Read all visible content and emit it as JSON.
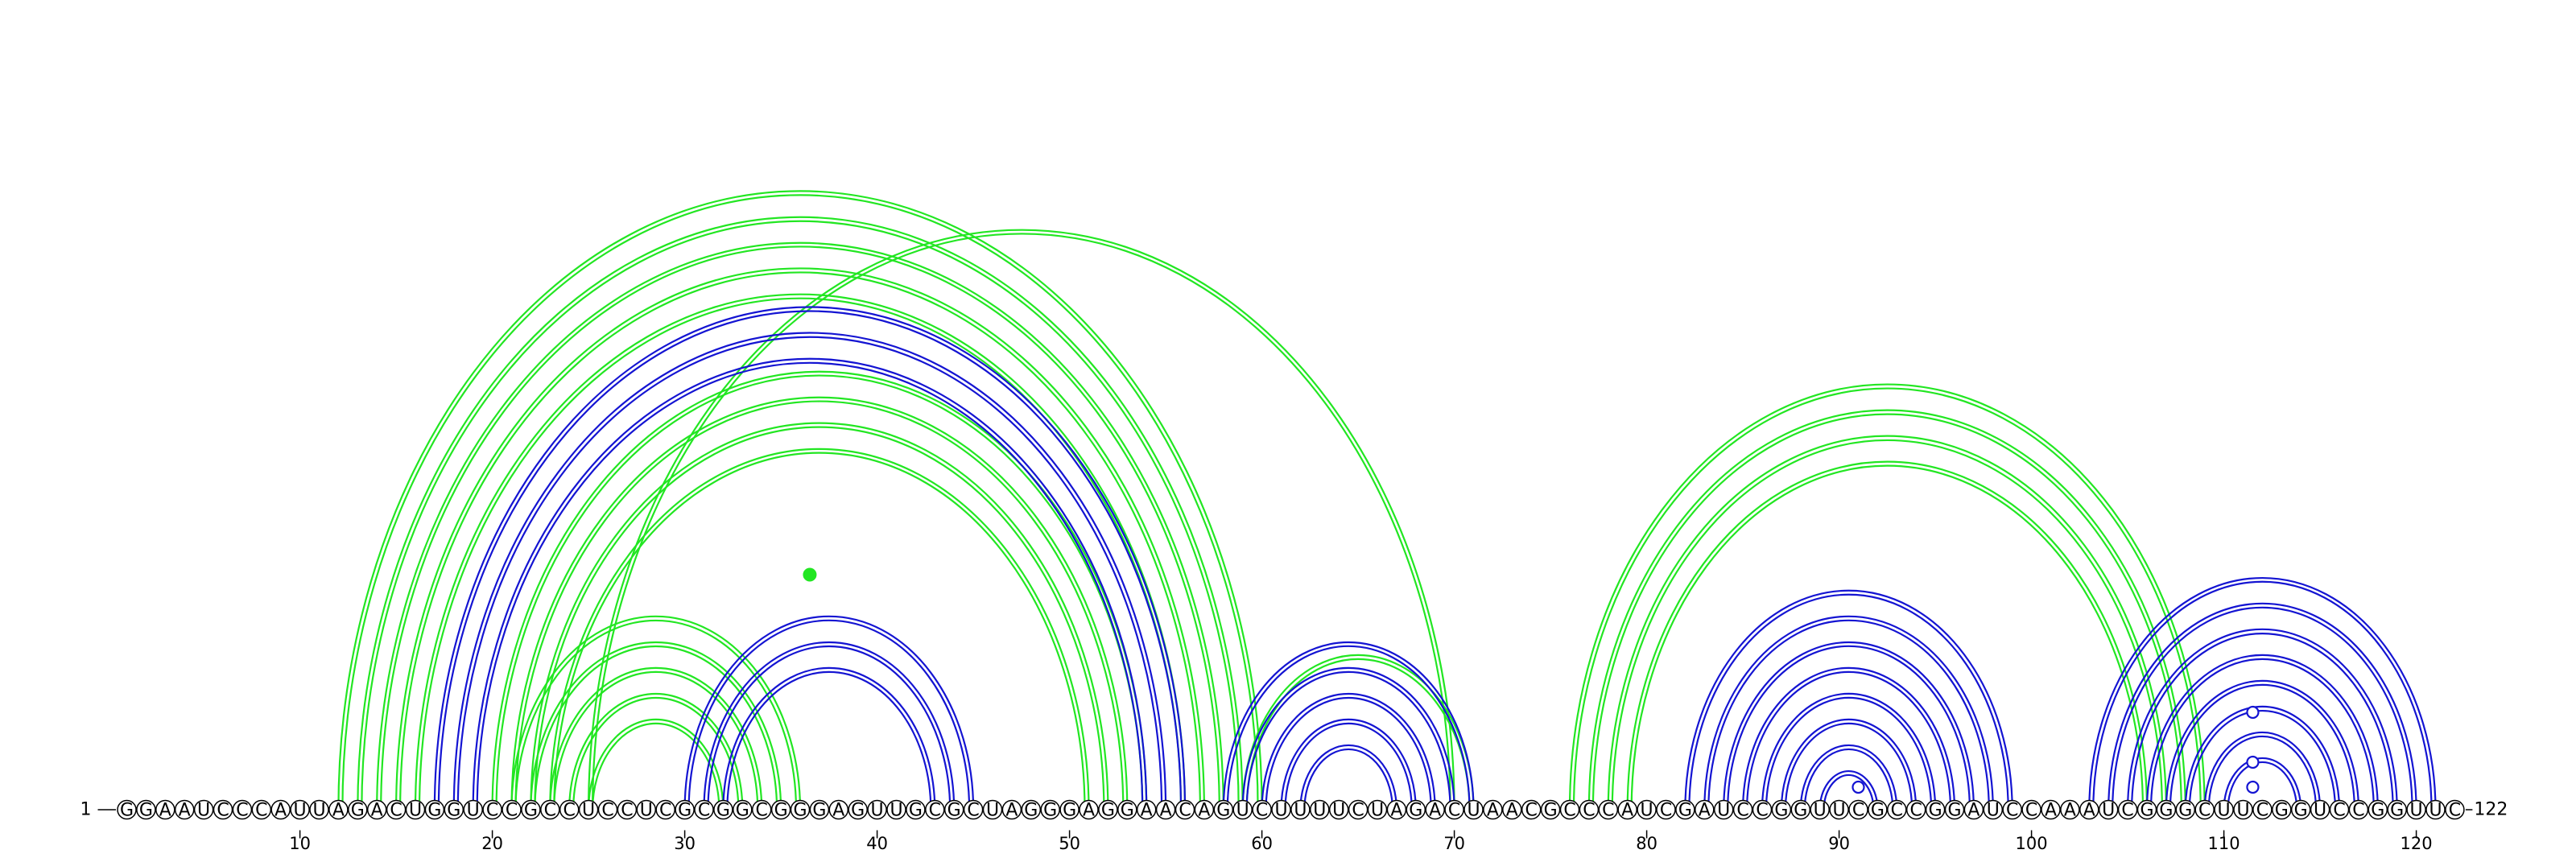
{
  "sequence": "GGAAUCCCAUUAGACUGGUCCGCCUCCUCGCGGCGGGAGUUGCGCUAGGGAGGAACAGUCUUUUCUAGACUAACGCCCAUCGAUCCGGUUCGCCGGAUCCAAAUCGGGCUUCGGUCCGGUUC",
  "length": 122,
  "start_label": "1",
  "end_label": "122",
  "ticks": [
    "10",
    "20",
    "30",
    "40",
    "50",
    "60",
    "70",
    "80",
    "90",
    "100",
    "110",
    "120"
  ],
  "colors": {
    "green": "#22e622",
    "blue": "#1414d2"
  },
  "structures": [
    {
      "color": "green",
      "pairs": [
        [
          12,
          60
        ],
        [
          13,
          59
        ],
        [
          14,
          58
        ],
        [
          15,
          57
        ],
        [
          16,
          56
        ],
        [
          20,
          54
        ],
        [
          21,
          53
        ],
        [
          22,
          52
        ],
        [
          23,
          51
        ],
        [
          25,
          70
        ],
        [
          21,
          36
        ],
        [
          22,
          35
        ],
        [
          23,
          34
        ],
        [
          24,
          33
        ],
        [
          25,
          32
        ],
        [
          59,
          71
        ],
        [
          76,
          109
        ],
        [
          77,
          108
        ],
        [
          78,
          107
        ],
        [
          79,
          106
        ]
      ]
    },
    {
      "color": "blue",
      "pairs": [
        [
          17,
          56
        ],
        [
          18,
          55
        ],
        [
          19,
          54
        ],
        [
          30,
          45
        ],
        [
          31,
          44
        ],
        [
          32,
          43
        ],
        [
          58,
          71
        ],
        [
          59,
          70
        ],
        [
          60,
          69
        ],
        [
          61,
          68
        ],
        [
          62,
          67
        ],
        [
          82,
          99
        ],
        [
          83,
          98
        ],
        [
          84,
          97
        ],
        [
          85,
          96
        ],
        [
          86,
          95
        ],
        [
          87,
          94
        ],
        [
          88,
          93
        ],
        [
          89,
          92
        ],
        [
          103,
          121
        ],
        [
          104,
          120
        ],
        [
          105,
          119
        ],
        [
          106,
          118
        ],
        [
          107,
          117
        ],
        [
          108,
          116
        ],
        [
          109,
          115
        ],
        [
          110,
          114
        ]
      ]
    }
  ],
  "markers": [
    {
      "color": "green",
      "style": "filled",
      "position": 36.5
    },
    {
      "color": "blue",
      "style": "open",
      "position": 91
    },
    {
      "color": "blue",
      "style": "open",
      "position": 111.5
    },
    {
      "color": "blue",
      "style": "open",
      "position": 111.5
    },
    {
      "color": "blue",
      "style": "open",
      "position": 111.5
    }
  ]
}
